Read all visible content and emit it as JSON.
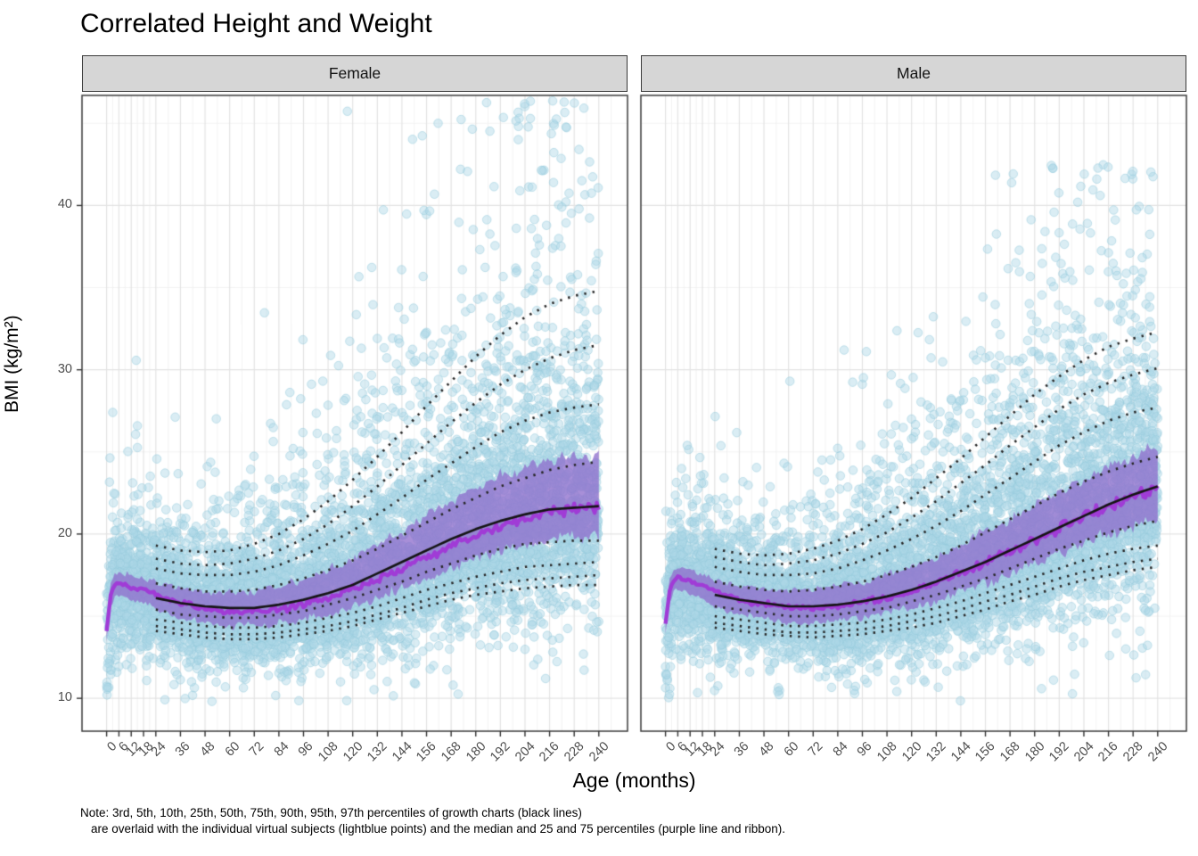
{
  "chart_data": {
    "type": "scatter",
    "title": "Correlated Height and Weight",
    "xlabel": "Age (months)",
    "ylabel": "BMI (kg/m²)",
    "x_domain": [
      -12,
      254
    ],
    "y_domain": [
      8,
      46.7
    ],
    "x_ticks": [
      0,
      6,
      12,
      18,
      24,
      36,
      48,
      60,
      72,
      84,
      96,
      108,
      120,
      132,
      144,
      156,
      168,
      180,
      192,
      204,
      216,
      228,
      240
    ],
    "x_minor": [
      3,
      9,
      15,
      21,
      30,
      42,
      54,
      66,
      78,
      90,
      102,
      114,
      126,
      138,
      150,
      162,
      174,
      186,
      198,
      210,
      222,
      234,
      246
    ],
    "y_ticks": [
      10,
      20,
      30,
      40
    ],
    "y_minor": [
      15,
      25,
      35,
      45
    ],
    "grid": true,
    "legend": "none",
    "percentile_ages": [
      24,
      36,
      48,
      60,
      72,
      84,
      96,
      108,
      120,
      132,
      144,
      156,
      168,
      180,
      192,
      204,
      216,
      228,
      240
    ],
    "subject_ages": [
      0,
      2,
      4,
      6,
      9,
      12,
      15,
      18,
      21,
      24,
      30,
      36,
      48,
      60,
      72,
      84,
      96,
      108,
      120,
      132,
      144,
      156,
      168,
      180,
      192,
      204,
      216,
      228,
      240
    ],
    "facets": [
      {
        "label": "Female",
        "growth_percentiles": {
          "p3": [
            14.1,
            13.9,
            13.7,
            13.6,
            13.6,
            13.7,
            13.9,
            14.1,
            14.4,
            14.8,
            15.2,
            15.6,
            16.0,
            16.3,
            16.5,
            16.7,
            16.8,
            16.9,
            16.9
          ],
          "p5": [
            14.4,
            14.2,
            14.0,
            13.9,
            13.9,
            14.0,
            14.2,
            14.4,
            14.7,
            15.1,
            15.5,
            16.0,
            16.4,
            16.7,
            17.0,
            17.2,
            17.3,
            17.4,
            17.5
          ],
          "p10": [
            14.8,
            14.6,
            14.4,
            14.3,
            14.3,
            14.4,
            14.6,
            14.9,
            15.2,
            15.6,
            16.1,
            16.6,
            17.0,
            17.4,
            17.7,
            18.0,
            18.1,
            18.2,
            18.3
          ],
          "p25": [
            15.4,
            15.1,
            15.0,
            14.9,
            14.9,
            15.1,
            15.3,
            15.7,
            16.1,
            16.6,
            17.1,
            17.7,
            18.2,
            18.7,
            19.1,
            19.4,
            19.5,
            19.6,
            19.6
          ],
          "p50": [
            16.1,
            15.8,
            15.6,
            15.5,
            15.5,
            15.7,
            16.0,
            16.4,
            16.9,
            17.6,
            18.3,
            19.0,
            19.7,
            20.3,
            20.8,
            21.2,
            21.5,
            21.6,
            21.7
          ],
          "p75": [
            17.0,
            16.7,
            16.5,
            16.5,
            16.6,
            16.9,
            17.3,
            17.8,
            18.4,
            19.1,
            19.9,
            20.7,
            21.5,
            22.2,
            22.9,
            23.4,
            23.9,
            24.2,
            24.4
          ],
          "p90": [
            17.9,
            17.6,
            17.5,
            17.5,
            17.7,
            18.1,
            18.7,
            19.4,
            20.2,
            21.2,
            22.2,
            23.3,
            24.3,
            25.3,
            26.2,
            26.9,
            27.4,
            27.7,
            27.9
          ],
          "p95": [
            18.5,
            18.2,
            18.1,
            18.2,
            18.5,
            19.0,
            19.7,
            20.6,
            21.7,
            22.9,
            24.2,
            25.5,
            26.8,
            28.0,
            29.1,
            30.0,
            30.7,
            31.2,
            31.5
          ],
          "p97": [
            19.3,
            19.0,
            18.9,
            19.0,
            19.4,
            20.0,
            20.9,
            22.0,
            23.3,
            24.7,
            26.2,
            27.8,
            29.3,
            30.8,
            32.1,
            33.2,
            34.0,
            34.5,
            34.8
          ]
        },
        "subject_median": [
          14.2,
          16.2,
          16.9,
          17.0,
          16.9,
          16.8,
          16.7,
          16.6,
          16.5,
          16.3,
          16.0,
          15.8,
          15.5,
          15.3,
          15.3,
          15.4,
          15.7,
          16.1,
          16.6,
          17.2,
          17.9,
          18.6,
          19.3,
          19.9,
          20.5,
          21.0,
          21.4,
          21.6,
          21.7
        ],
        "subject_p25": [
          13.6,
          15.5,
          16.2,
          16.3,
          16.2,
          16.0,
          15.9,
          15.8,
          15.7,
          15.4,
          15.1,
          14.9,
          14.6,
          14.4,
          14.4,
          14.5,
          14.8,
          15.1,
          15.6,
          16.1,
          16.7,
          17.3,
          17.9,
          18.5,
          19.0,
          19.4,
          19.7,
          19.9,
          19.9
        ],
        "subject_p75": [
          14.8,
          16.9,
          17.6,
          17.7,
          17.6,
          17.5,
          17.4,
          17.3,
          17.2,
          17.1,
          16.9,
          16.7,
          16.5,
          16.4,
          16.5,
          16.8,
          17.2,
          17.8,
          18.5,
          19.3,
          20.2,
          21.1,
          22.0,
          22.8,
          23.5,
          24.1,
          24.5,
          24.7,
          24.8
        ],
        "scatter": {
          "n": 7000,
          "seed": 101,
          "bmi_max": 46.5,
          "bmi_min": 9.8,
          "spread_up": [
            1.5,
            1.8,
            1.9,
            1.9,
            1.9,
            1.9,
            1.8,
            1.8,
            1.8,
            1.8,
            1.9,
            2.0,
            2.1,
            2.3,
            2.6,
            2.9,
            3.2,
            3.6,
            4.0,
            4.4,
            4.8,
            5.2,
            5.6,
            6.0,
            6.3,
            6.5,
            6.7,
            6.8,
            6.9
          ],
          "spread_down": [
            1.5,
            1.9,
            2.0,
            2.0,
            2.0,
            2.0,
            1.9,
            1.9,
            1.8,
            1.8,
            1.7,
            1.6,
            1.5,
            1.5,
            1.5,
            1.6,
            1.7,
            1.8,
            1.9,
            2.0,
            2.1,
            2.2,
            2.4,
            2.5,
            2.7,
            2.8,
            2.9,
            3.0,
            3.1
          ]
        }
      },
      {
        "label": "Male",
        "growth_percentiles": {
          "p3": [
            14.3,
            14.1,
            13.9,
            13.8,
            13.7,
            13.8,
            13.9,
            14.1,
            14.3,
            14.6,
            15.0,
            15.4,
            15.9,
            16.3,
            16.8,
            17.2,
            17.5,
            17.8,
            18.0
          ],
          "p5": [
            14.6,
            14.4,
            14.2,
            14.0,
            14.0,
            14.1,
            14.2,
            14.4,
            14.7,
            15.0,
            15.4,
            15.9,
            16.3,
            16.8,
            17.3,
            17.7,
            18.0,
            18.3,
            18.5
          ],
          "p10": [
            15.0,
            14.8,
            14.6,
            14.4,
            14.4,
            14.5,
            14.6,
            14.8,
            15.1,
            15.5,
            15.9,
            16.4,
            16.9,
            17.4,
            17.9,
            18.4,
            18.8,
            19.1,
            19.3
          ],
          "p25": [
            15.6,
            15.4,
            15.2,
            15.0,
            15.0,
            15.1,
            15.3,
            15.5,
            15.9,
            16.3,
            16.8,
            17.3,
            17.9,
            18.5,
            19.1,
            19.6,
            20.1,
            20.5,
            20.8
          ],
          "p50": [
            16.3,
            16.0,
            15.8,
            15.6,
            15.6,
            15.7,
            15.9,
            16.2,
            16.6,
            17.1,
            17.7,
            18.3,
            19.0,
            19.7,
            20.4,
            21.1,
            21.8,
            22.4,
            22.9
          ],
          "p75": [
            17.1,
            16.8,
            16.6,
            16.5,
            16.6,
            16.8,
            17.1,
            17.5,
            18.0,
            18.6,
            19.3,
            20.1,
            20.9,
            21.7,
            22.5,
            23.2,
            23.8,
            24.3,
            24.7
          ],
          "p90": [
            18.0,
            17.7,
            17.5,
            17.5,
            17.6,
            17.9,
            18.4,
            19.0,
            19.7,
            20.5,
            21.4,
            22.4,
            23.4,
            24.4,
            25.4,
            26.2,
            26.9,
            27.4,
            27.7
          ],
          "p95": [
            18.6,
            18.3,
            18.1,
            18.2,
            18.4,
            18.8,
            19.4,
            20.1,
            21.0,
            22.0,
            23.1,
            24.2,
            25.4,
            26.5,
            27.6,
            28.5,
            29.2,
            29.7,
            30.1
          ],
          "p97": [
            19.1,
            18.8,
            18.7,
            18.8,
            19.1,
            19.6,
            20.3,
            21.2,
            22.2,
            23.4,
            24.6,
            25.9,
            27.2,
            28.5,
            29.6,
            30.6,
            31.4,
            31.9,
            32.3
          ]
        },
        "subject_median": [
          14.5,
          16.5,
          17.2,
          17.3,
          17.2,
          17.1,
          17.0,
          16.9,
          16.7,
          16.5,
          16.2,
          16.0,
          15.7,
          15.5,
          15.5,
          15.6,
          15.8,
          16.1,
          16.5,
          17.0,
          17.6,
          18.2,
          18.9,
          19.6,
          20.3,
          21.0,
          21.7,
          22.3,
          22.8
        ],
        "subject_p25": [
          13.9,
          15.8,
          16.5,
          16.6,
          16.5,
          16.3,
          16.2,
          16.1,
          15.9,
          15.6,
          15.3,
          15.1,
          14.8,
          14.6,
          14.6,
          14.7,
          14.9,
          15.2,
          15.5,
          15.9,
          16.4,
          17.0,
          17.6,
          18.2,
          18.8,
          19.4,
          20.0,
          20.5,
          20.9
        ],
        "subject_p75": [
          15.1,
          17.2,
          17.9,
          18.0,
          17.9,
          17.8,
          17.7,
          17.6,
          17.4,
          17.2,
          17.0,
          16.8,
          16.6,
          16.5,
          16.6,
          16.8,
          17.1,
          17.5,
          18.0,
          18.6,
          19.3,
          20.1,
          20.9,
          21.7,
          22.5,
          23.3,
          24.0,
          24.7,
          25.3
        ],
        "scatter": {
          "n": 7000,
          "seed": 202,
          "bmi_max": 42.5,
          "bmi_min": 9.8,
          "spread_up": [
            1.5,
            1.8,
            1.9,
            1.9,
            1.9,
            1.9,
            1.8,
            1.8,
            1.8,
            1.8,
            1.9,
            2.0,
            2.1,
            2.2,
            2.4,
            2.7,
            3.0,
            3.3,
            3.6,
            3.9,
            4.2,
            4.5,
            4.8,
            5.1,
            5.4,
            5.6,
            5.8,
            5.9,
            6.0
          ],
          "spread_down": [
            1.5,
            1.9,
            2.0,
            2.0,
            2.0,
            2.0,
            1.9,
            1.9,
            1.8,
            1.8,
            1.7,
            1.6,
            1.5,
            1.5,
            1.5,
            1.6,
            1.7,
            1.8,
            1.9,
            2.0,
            2.1,
            2.2,
            2.4,
            2.5,
            2.7,
            2.8,
            2.9,
            3.0,
            3.1
          ]
        }
      }
    ],
    "note": {
      "line1": "Note: 3rd, 5th, 10th, 25th, 50th, 75th, 90th, 95th, 97th percentiles of growth charts (black lines)",
      "line2": "are overlaid with the individual virtual subjects (lightblue points) and the median and 25 and 75 percentiles (purple line and ribbon)."
    },
    "style": {
      "point_color": "#ADD8E6",
      "point_alpha": 0.45,
      "ribbon_color": "#9070CD",
      "ribbon_alpha": 0.78,
      "median_color": "#A03BD6",
      "percentile_color": "#262626",
      "p50_color": "#151515",
      "grid_major": "#E3E3E3",
      "grid_minor": "#F1F1F1",
      "strip_bg": "#D6D6D6",
      "panel_border": "#3A3A3A",
      "tick_color": "#333333",
      "tick_label_color": "#4D4D4D"
    }
  }
}
